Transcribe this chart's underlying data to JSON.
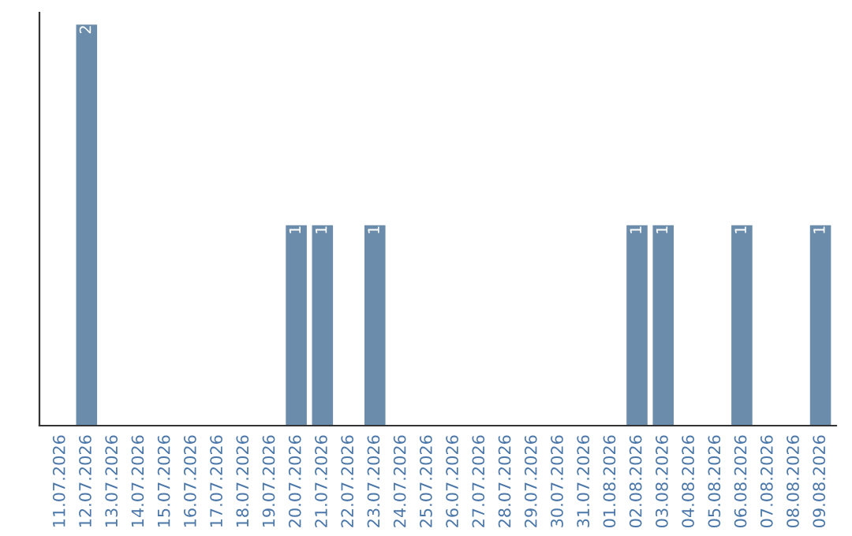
{
  "chart_data": {
    "type": "bar",
    "categories": [
      "11.07.2026",
      "12.07.2026",
      "13.07.2026",
      "14.07.2026",
      "15.07.2026",
      "16.07.2026",
      "17.07.2026",
      "18.07.2026",
      "19.07.2026",
      "20.07.2026",
      "21.07.2026",
      "22.07.2026",
      "23.07.2026",
      "24.07.2026",
      "25.07.2026",
      "26.07.2026",
      "27.07.2026",
      "28.07.2026",
      "29.07.2026",
      "30.07.2026",
      "31.07.2026",
      "01.08.2026",
      "02.08.2026",
      "03.08.2026",
      "04.08.2026",
      "05.08.2026",
      "06.08.2026",
      "07.08.2026",
      "08.08.2026",
      "09.08.2026"
    ],
    "values": [
      0,
      2,
      0,
      0,
      0,
      0,
      0,
      0,
      0,
      1,
      1,
      0,
      1,
      0,
      0,
      0,
      0,
      0,
      0,
      0,
      0,
      0,
      1,
      1,
      0,
      0,
      1,
      0,
      0,
      1
    ],
    "value_labels": [
      null,
      "2",
      null,
      null,
      null,
      null,
      null,
      null,
      null,
      "1",
      "1",
      null,
      "1",
      null,
      null,
      null,
      null,
      null,
      null,
      null,
      null,
      null,
      "1",
      "1",
      null,
      null,
      "1",
      null,
      null,
      "1"
    ],
    "color": "#6b8cab",
    "tick_labels": "x",
    "grid": false,
    "legend": false
  }
}
